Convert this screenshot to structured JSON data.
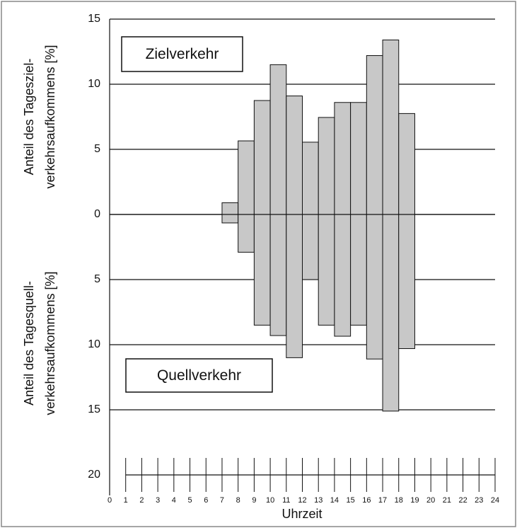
{
  "chart_data": {
    "type": "histogram",
    "ylabel_top": [
      "Anteil des Tagesziel-",
      "verkehrsaufkommens [%]"
    ],
    "ylabel_bottom": [
      "Anteil des Tagesquell-",
      "verkehrsaufkommens [%]"
    ],
    "xlabel": "Uhrzeit",
    "bins": [
      7,
      8,
      9,
      10,
      11,
      12,
      13,
      14,
      15,
      16,
      17,
      18,
      19
    ],
    "series": [
      {
        "name": "Zielverkehr",
        "color": "#c8c8c8",
        "values": [
          0.9,
          5.65,
          8.75,
          11.5,
          9.1,
          5.55,
          7.45,
          8.6,
          8.6,
          12.2,
          13.4,
          7.75
        ]
      },
      {
        "name": "Quellverkehr",
        "color": "#c8c8c8",
        "values": [
          -0.65,
          -2.9,
          -8.5,
          -9.3,
          -11.0,
          -5.0,
          -8.5,
          -9.35,
          -8.5,
          -11.1,
          -15.1,
          -10.3
        ]
      }
    ],
    "xlim": [
      0,
      24
    ],
    "xticks": [
      0,
      1,
      2,
      3,
      4,
      5,
      6,
      7,
      8,
      9,
      10,
      11,
      12,
      13,
      14,
      15,
      16,
      17,
      18,
      19,
      20,
      21,
      22,
      23,
      24
    ],
    "ylim": [
      -20,
      15
    ],
    "yticks": [
      15,
      10,
      5,
      0,
      {
        "value": -5,
        "label": "5"
      },
      {
        "value": -10,
        "label": "10"
      },
      {
        "value": -15,
        "label": "15"
      },
      {
        "value": -20,
        "label": "20"
      }
    ],
    "grid": true
  }
}
